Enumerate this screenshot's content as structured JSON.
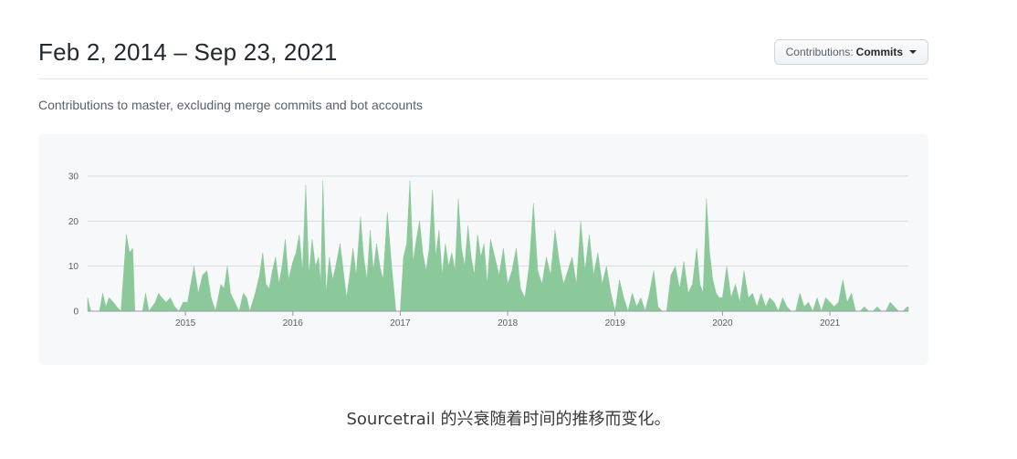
{
  "header": {
    "date_range": "Feb 2, 2014 – Sep 23, 2021",
    "contributions_label": "Contributions:",
    "contributions_value": "Commits"
  },
  "subtitle": "Contributions to master, excluding merge commits and bot accounts",
  "caption": "Sourcetrail 的兴衰随着时间的推移而变化。",
  "colors": {
    "area": "#8cc99a",
    "grid": "#d8dce0",
    "background": "#f6f8fa"
  },
  "chart_data": {
    "type": "area",
    "title": "",
    "xlabel": "",
    "ylabel": "",
    "ylim": [
      0,
      30
    ],
    "xlim": [
      2014.09,
      2021.73
    ],
    "yticks": [
      "0",
      "10",
      "20",
      "30"
    ],
    "xticks": [
      "2015",
      "2016",
      "2017",
      "2018",
      "2019",
      "2020",
      "2021"
    ],
    "grid": true,
    "series": [
      {
        "values": [
          [
            2014.09,
            3
          ],
          [
            2014.12,
            0
          ],
          [
            2014.2,
            0
          ],
          [
            2014.23,
            4
          ],
          [
            2014.26,
            1
          ],
          [
            2014.29,
            3
          ],
          [
            2014.33,
            2
          ],
          [
            2014.36,
            1
          ],
          [
            2014.4,
            0
          ],
          [
            2014.45,
            17
          ],
          [
            2014.48,
            13
          ],
          [
            2014.51,
            14
          ],
          [
            2014.53,
            0
          ],
          [
            2014.6,
            0
          ],
          [
            2014.63,
            4
          ],
          [
            2014.66,
            0
          ],
          [
            2014.72,
            2
          ],
          [
            2014.75,
            4
          ],
          [
            2014.78,
            3
          ],
          [
            2014.82,
            2
          ],
          [
            2014.86,
            3
          ],
          [
            2014.9,
            1
          ],
          [
            2014.94,
            0
          ],
          [
            2014.98,
            2
          ],
          [
            2015.02,
            2
          ],
          [
            2015.08,
            10
          ],
          [
            2015.12,
            4
          ],
          [
            2015.16,
            8
          ],
          [
            2015.2,
            9
          ],
          [
            2015.24,
            3
          ],
          [
            2015.28,
            0
          ],
          [
            2015.33,
            6
          ],
          [
            2015.36,
            5
          ],
          [
            2015.39,
            10
          ],
          [
            2015.42,
            4
          ],
          [
            2015.46,
            2
          ],
          [
            2015.5,
            0
          ],
          [
            2015.54,
            4
          ],
          [
            2015.57,
            3
          ],
          [
            2015.6,
            0
          ],
          [
            2015.65,
            4
          ],
          [
            2015.69,
            8
          ],
          [
            2015.72,
            13
          ],
          [
            2015.75,
            6
          ],
          [
            2015.78,
            5
          ],
          [
            2015.81,
            9
          ],
          [
            2015.84,
            12
          ],
          [
            2015.87,
            6
          ],
          [
            2015.9,
            10
          ],
          [
            2015.93,
            16
          ],
          [
            2015.96,
            7
          ],
          [
            2016.0,
            11
          ],
          [
            2016.03,
            13
          ],
          [
            2016.06,
            17
          ],
          [
            2016.09,
            9
          ],
          [
            2016.12,
            28
          ],
          [
            2016.15,
            8
          ],
          [
            2016.18,
            16
          ],
          [
            2016.21,
            10
          ],
          [
            2016.24,
            12
          ],
          [
            2016.26,
            6
          ],
          [
            2016.28,
            29
          ],
          [
            2016.31,
            4
          ],
          [
            2016.34,
            12
          ],
          [
            2016.37,
            7
          ],
          [
            2016.4,
            10
          ],
          [
            2016.44,
            15
          ],
          [
            2016.47,
            9
          ],
          [
            2016.5,
            3
          ],
          [
            2016.53,
            8
          ],
          [
            2016.56,
            14
          ],
          [
            2016.59,
            8
          ],
          [
            2016.63,
            21
          ],
          [
            2016.66,
            12
          ],
          [
            2016.69,
            7
          ],
          [
            2016.72,
            18
          ],
          [
            2016.75,
            9
          ],
          [
            2016.78,
            15
          ],
          [
            2016.81,
            10
          ],
          [
            2016.84,
            7
          ],
          [
            2016.88,
            22
          ],
          [
            2016.92,
            10
          ],
          [
            2016.96,
            0
          ],
          [
            2017.0,
            0
          ],
          [
            2017.03,
            12
          ],
          [
            2017.06,
            15
          ],
          [
            2017.09,
            29
          ],
          [
            2017.12,
            11
          ],
          [
            2017.15,
            16
          ],
          [
            2017.18,
            20
          ],
          [
            2017.21,
            13
          ],
          [
            2017.24,
            9
          ],
          [
            2017.27,
            14
          ],
          [
            2017.3,
            27
          ],
          [
            2017.33,
            12
          ],
          [
            2017.36,
            18
          ],
          [
            2017.39,
            8
          ],
          [
            2017.42,
            15
          ],
          [
            2017.45,
            10
          ],
          [
            2017.48,
            13
          ],
          [
            2017.51,
            9
          ],
          [
            2017.54,
            25
          ],
          [
            2017.57,
            14
          ],
          [
            2017.6,
            10
          ],
          [
            2017.63,
            19
          ],
          [
            2017.66,
            12
          ],
          [
            2017.69,
            8
          ],
          [
            2017.72,
            17
          ],
          [
            2017.75,
            12
          ],
          [
            2017.78,
            15
          ],
          [
            2017.81,
            6
          ],
          [
            2017.84,
            16
          ],
          [
            2017.88,
            12
          ],
          [
            2017.92,
            8
          ],
          [
            2017.96,
            14
          ],
          [
            2018.0,
            6
          ],
          [
            2018.04,
            9
          ],
          [
            2018.08,
            14
          ],
          [
            2018.12,
            5
          ],
          [
            2018.16,
            3
          ],
          [
            2018.2,
            10
          ],
          [
            2018.24,
            24
          ],
          [
            2018.28,
            9
          ],
          [
            2018.32,
            6
          ],
          [
            2018.36,
            12
          ],
          [
            2018.4,
            8
          ],
          [
            2018.44,
            18
          ],
          [
            2018.48,
            11
          ],
          [
            2018.52,
            6
          ],
          [
            2018.56,
            9
          ],
          [
            2018.6,
            12
          ],
          [
            2018.64,
            6
          ],
          [
            2018.68,
            20
          ],
          [
            2018.72,
            9
          ],
          [
            2018.76,
            17
          ],
          [
            2018.8,
            8
          ],
          [
            2018.84,
            13
          ],
          [
            2018.88,
            6
          ],
          [
            2018.92,
            10
          ],
          [
            2018.96,
            4
          ],
          [
            2019.0,
            0
          ],
          [
            2019.04,
            7
          ],
          [
            2019.08,
            3
          ],
          [
            2019.12,
            0
          ],
          [
            2019.16,
            4
          ],
          [
            2019.2,
            1
          ],
          [
            2019.24,
            3
          ],
          [
            2019.28,
            0
          ],
          [
            2019.32,
            4
          ],
          [
            2019.36,
            9
          ],
          [
            2019.4,
            1
          ],
          [
            2019.44,
            0
          ],
          [
            2019.48,
            0
          ],
          [
            2019.52,
            8
          ],
          [
            2019.56,
            10
          ],
          [
            2019.6,
            5
          ],
          [
            2019.64,
            11
          ],
          [
            2019.68,
            4
          ],
          [
            2019.72,
            6
          ],
          [
            2019.76,
            14
          ],
          [
            2019.79,
            6
          ],
          [
            2019.82,
            4
          ],
          [
            2019.85,
            25
          ],
          [
            2019.88,
            13
          ],
          [
            2019.91,
            7
          ],
          [
            2019.94,
            4
          ],
          [
            2019.97,
            3
          ],
          [
            2020.0,
            3
          ],
          [
            2020.04,
            10
          ],
          [
            2020.08,
            3
          ],
          [
            2020.12,
            6
          ],
          [
            2020.16,
            2
          ],
          [
            2020.2,
            9
          ],
          [
            2020.24,
            3
          ],
          [
            2020.28,
            4
          ],
          [
            2020.32,
            1
          ],
          [
            2020.36,
            4
          ],
          [
            2020.4,
            1
          ],
          [
            2020.44,
            3
          ],
          [
            2020.48,
            2
          ],
          [
            2020.52,
            0
          ],
          [
            2020.56,
            3
          ],
          [
            2020.6,
            1
          ],
          [
            2020.64,
            0
          ],
          [
            2020.68,
            0
          ],
          [
            2020.72,
            4
          ],
          [
            2020.76,
            1
          ],
          [
            2020.8,
            2
          ],
          [
            2020.84,
            0
          ],
          [
            2020.88,
            3
          ],
          [
            2020.92,
            0
          ],
          [
            2020.96,
            3
          ],
          [
            2021.0,
            2
          ],
          [
            2021.04,
            1
          ],
          [
            2021.08,
            2
          ],
          [
            2021.12,
            7
          ],
          [
            2021.16,
            2
          ],
          [
            2021.2,
            4
          ],
          [
            2021.24,
            0
          ],
          [
            2021.28,
            0
          ],
          [
            2021.32,
            1
          ],
          [
            2021.36,
            0
          ],
          [
            2021.4,
            0
          ],
          [
            2021.44,
            1
          ],
          [
            2021.48,
            0
          ],
          [
            2021.52,
            0
          ],
          [
            2021.56,
            2
          ],
          [
            2021.6,
            1
          ],
          [
            2021.64,
            0
          ],
          [
            2021.68,
            0
          ],
          [
            2021.72,
            1
          ],
          [
            2021.73,
            1
          ]
        ]
      }
    ]
  }
}
